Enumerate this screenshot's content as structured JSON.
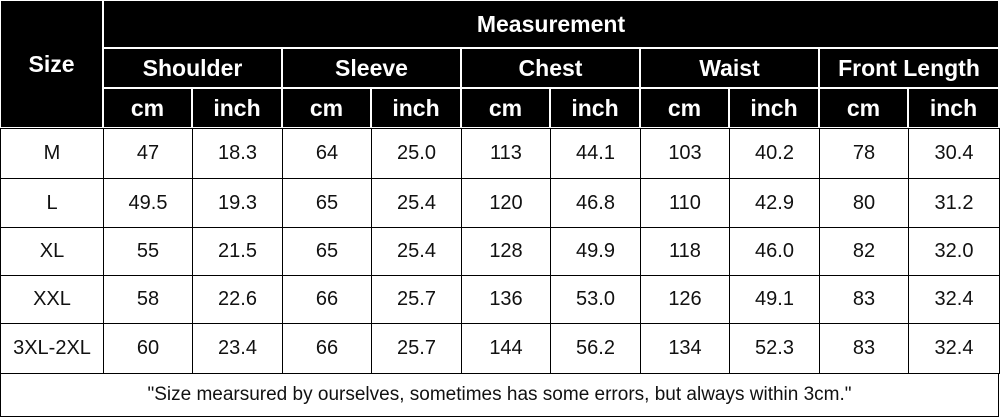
{
  "header": {
    "size": "Size",
    "measurement": "Measurement",
    "groups": [
      "Shoulder",
      "Sleeve",
      "Chest",
      "Waist",
      "Front Length"
    ],
    "units": [
      "cm",
      "inch",
      "cm",
      "inch",
      "cm",
      "inch",
      "cm",
      "inch",
      "cm",
      "inch"
    ]
  },
  "table": {
    "rows": [
      [
        "M",
        "47",
        "18.3",
        "64",
        "25.0",
        "113",
        "44.1",
        "103",
        "40.2",
        "78",
        "30.4"
      ],
      [
        "L",
        "49.5",
        "19.3",
        "65",
        "25.4",
        "120",
        "46.8",
        "110",
        "42.9",
        "80",
        "31.2"
      ],
      [
        "XL",
        "55",
        "21.5",
        "65",
        "25.4",
        "128",
        "49.9",
        "118",
        "46.0",
        "82",
        "32.0"
      ],
      [
        "XXL",
        "58",
        "22.6",
        "66",
        "25.7",
        "136",
        "53.0",
        "126",
        "49.1",
        "83",
        "32.4"
      ],
      [
        "3XL-2XL",
        "60",
        "23.4",
        "66",
        "25.7",
        "144",
        "56.2",
        "134",
        "52.3",
        "83",
        "32.4"
      ]
    ]
  },
  "note": "\"Size mearsured by ourselves, sometimes has some errors, but always within 3cm.\""
}
